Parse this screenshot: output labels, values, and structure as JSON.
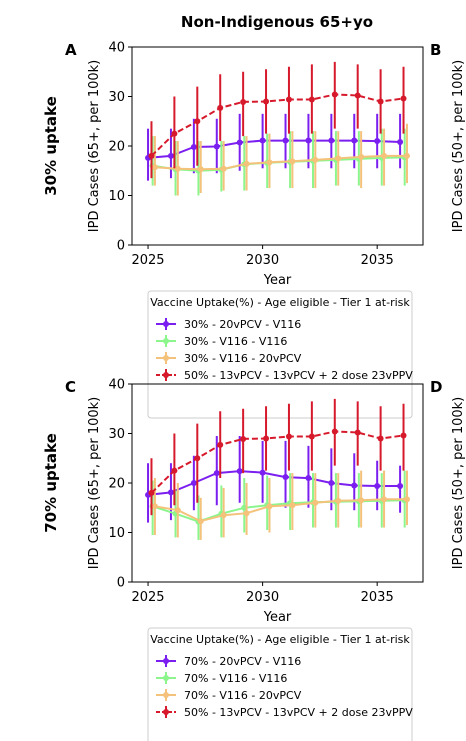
{
  "figure_title": "Non-Indigenous 65+yo",
  "colors": {
    "purple": "#7b1ff0",
    "lightgreen": "#8cf58c",
    "orange": "#f4c27a",
    "red": "#d7192c"
  },
  "chart_data": [
    {
      "type": "line",
      "panel_letter": "A",
      "right_letter": "B",
      "row_label": "30% uptake",
      "right_ylabel": "IPD Cases (50+, per 100k)",
      "xlabel": "Year",
      "ylabel": "IPD Cases (65+, per 100k)",
      "xlim": [
        2024.3,
        2037.0
      ],
      "ylim": [
        0,
        40
      ],
      "xticks": [
        2025,
        2030,
        2035
      ],
      "yticks": [
        0,
        10,
        20,
        30,
        40
      ],
      "legend_title": "Vaccine Uptake(%) - Age eligible - Tier 1 at-risk",
      "series": [
        {
          "name": "30% - 20vPCV - V116",
          "color": "#7b1ff0",
          "dashed": false,
          "x": [
            2025,
            2026,
            2027,
            2028,
            2029,
            2030,
            2031,
            2032,
            2033,
            2034,
            2035,
            2036
          ],
          "y": [
            17.6,
            18.0,
            19.8,
            19.9,
            20.7,
            21.1,
            21.1,
            21.1,
            21.1,
            21.1,
            21.0,
            20.8
          ],
          "lo": [
            13.0,
            13.5,
            14.5,
            14.5,
            15.0,
            15.5,
            15.5,
            15.5,
            15.5,
            15.5,
            15.5,
            15.5
          ],
          "hi": [
            23.5,
            23.5,
            25.5,
            25.5,
            26.5,
            26.5,
            26.5,
            26.5,
            26.5,
            26.5,
            26.5,
            26.5
          ]
        },
        {
          "name": "30% - V116 - V116",
          "color": "#8cf58c",
          "dashed": false,
          "x": [
            2025.2,
            2026.2,
            2027.2,
            2028.2,
            2029.2,
            2030.2,
            2031.2,
            2032.2,
            2033.2,
            2034.2,
            2035.2,
            2036.2
          ],
          "y": [
            16.0,
            15.3,
            15.0,
            15.2,
            16.3,
            16.6,
            16.8,
            17.0,
            17.2,
            17.4,
            17.6,
            17.7
          ],
          "lo": [
            12.0,
            10.0,
            10.0,
            10.8,
            11.0,
            11.5,
            11.5,
            11.5,
            12.0,
            12.0,
            12.0,
            12.0
          ],
          "hi": [
            22.0,
            21.0,
            21.0,
            21.0,
            22.0,
            22.5,
            23.0,
            23.0,
            23.0,
            23.0,
            23.5,
            23.5
          ]
        },
        {
          "name": "30% - V116 - 20vPCV",
          "color": "#f4c27a",
          "dashed": false,
          "x": [
            2025.3,
            2026.3,
            2027.3,
            2028.3,
            2029.3,
            2030.3,
            2031.3,
            2032.3,
            2033.3,
            2034.3,
            2035.3,
            2036.3
          ],
          "y": [
            15.7,
            15.4,
            15.3,
            15.4,
            16.4,
            16.7,
            16.9,
            17.2,
            17.5,
            17.8,
            18.0,
            18.0
          ],
          "lo": [
            12.0,
            10.0,
            10.5,
            11.0,
            11.0,
            11.5,
            11.5,
            11.5,
            12.0,
            11.5,
            12.0,
            12.5
          ],
          "hi": [
            22.0,
            21.0,
            21.0,
            21.0,
            22.0,
            22.5,
            23.0,
            23.0,
            23.0,
            23.0,
            23.5,
            24.5
          ]
        },
        {
          "name": "50% - 13vPCV - 13vPCV + 2 dose 23vPPV",
          "color": "#d7192c",
          "dashed": true,
          "x": [
            2025.15,
            2026.15,
            2027.15,
            2028.15,
            2029.15,
            2030.15,
            2031.15,
            2032.15,
            2033.15,
            2034.15,
            2035.15,
            2036.15
          ],
          "y": [
            18.0,
            22.5,
            25.0,
            27.7,
            28.9,
            29.0,
            29.4,
            29.4,
            30.4,
            30.2,
            29.0,
            29.6
          ],
          "lo": [
            13.5,
            15.5,
            16.0,
            21.0,
            22.0,
            22.5,
            22.5,
            22.5,
            23.5,
            23.5,
            22.5,
            22.5
          ],
          "hi": [
            25.0,
            30.0,
            32.0,
            34.5,
            35.0,
            35.5,
            36.0,
            36.5,
            37.0,
            36.5,
            35.5,
            36.0
          ]
        }
      ]
    },
    {
      "type": "line",
      "panel_letter": "C",
      "right_letter": "D",
      "row_label": "70% uptake",
      "right_ylabel": "IPD Cases (50+, per 100k)",
      "xlabel": "Year",
      "ylabel": "IPD Cases (65+, per 100k)",
      "xlim": [
        2024.3,
        2037.0
      ],
      "ylim": [
        0,
        40
      ],
      "xticks": [
        2025,
        2030,
        2035
      ],
      "yticks": [
        0,
        10,
        20,
        30,
        40
      ],
      "legend_title": "Vaccine Uptake(%) - Age eligible - Tier 1 at-risk",
      "series": [
        {
          "name": "70% - 20vPCV - V116",
          "color": "#7b1ff0",
          "dashed": false,
          "x": [
            2025,
            2026,
            2027,
            2028,
            2029,
            2030,
            2031,
            2032,
            2033,
            2034,
            2035,
            2036
          ],
          "y": [
            17.6,
            18.1,
            20.0,
            22.0,
            22.4,
            22.1,
            21.2,
            21.0,
            20.0,
            19.5,
            19.4,
            19.4
          ],
          "lo": [
            12.0,
            12.5,
            14.5,
            15.5,
            16.0,
            16.0,
            15.0,
            15.0,
            14.5,
            14.5,
            14.5,
            14.0
          ],
          "hi": [
            24.0,
            24.0,
            25.5,
            29.5,
            29.5,
            28.5,
            28.5,
            27.5,
            27.0,
            26.0,
            24.5,
            23.5
          ]
        },
        {
          "name": "70% - V116 - V116",
          "color": "#8cf58c",
          "dashed": false,
          "x": [
            2025.2,
            2026.2,
            2027.2,
            2028.2,
            2029.2,
            2030.2,
            2031.2,
            2032.2,
            2033.2,
            2034.2,
            2035.2,
            2036.2
          ],
          "y": [
            15.3,
            13.8,
            12.2,
            13.8,
            15.0,
            15.5,
            15.9,
            16.1,
            16.2,
            16.3,
            16.4,
            16.5
          ],
          "lo": [
            9.5,
            9.0,
            8.5,
            9.0,
            10.0,
            10.5,
            10.5,
            11.0,
            11.0,
            11.0,
            11.0,
            11.0
          ],
          "hi": [
            20.5,
            18.5,
            17.5,
            19.5,
            21.0,
            21.5,
            22.0,
            22.0,
            22.0,
            22.0,
            22.0,
            22.5
          ]
        },
        {
          "name": "70% - V116 - 20vPCV",
          "color": "#f4c27a",
          "dashed": false,
          "x": [
            2025.3,
            2026.3,
            2027.3,
            2028.3,
            2029.3,
            2030.3,
            2031.3,
            2032.3,
            2033.3,
            2034.3,
            2035.3,
            2036.3
          ],
          "y": [
            15.3,
            14.5,
            12.3,
            13.5,
            13.9,
            15.3,
            15.5,
            16.0,
            16.4,
            16.5,
            16.7,
            16.7
          ],
          "lo": [
            9.5,
            9.0,
            8.5,
            9.0,
            9.5,
            10.0,
            10.5,
            11.0,
            11.0,
            11.0,
            11.0,
            11.5
          ],
          "hi": [
            21.0,
            20.0,
            17.0,
            19.0,
            20.0,
            21.0,
            22.0,
            22.0,
            22.0,
            22.5,
            22.5,
            22.5
          ]
        },
        {
          "name": "50% - 13vPCV - 13vPCV + 2 dose 23vPPV",
          "color": "#d7192c",
          "dashed": true,
          "x": [
            2025.15,
            2026.15,
            2027.15,
            2028.15,
            2029.15,
            2030.15,
            2031.15,
            2032.15,
            2033.15,
            2034.15,
            2035.15,
            2036.15
          ],
          "y": [
            18.0,
            22.5,
            25.0,
            27.7,
            28.9,
            29.0,
            29.4,
            29.4,
            30.4,
            30.2,
            29.0,
            29.6
          ],
          "lo": [
            13.5,
            15.5,
            16.0,
            21.0,
            22.0,
            22.5,
            22.5,
            22.5,
            23.5,
            23.5,
            22.5,
            22.5
          ],
          "hi": [
            25.0,
            30.0,
            32.0,
            34.5,
            35.0,
            35.5,
            36.0,
            36.5,
            37.0,
            36.5,
            35.5,
            36.0
          ]
        }
      ]
    }
  ]
}
